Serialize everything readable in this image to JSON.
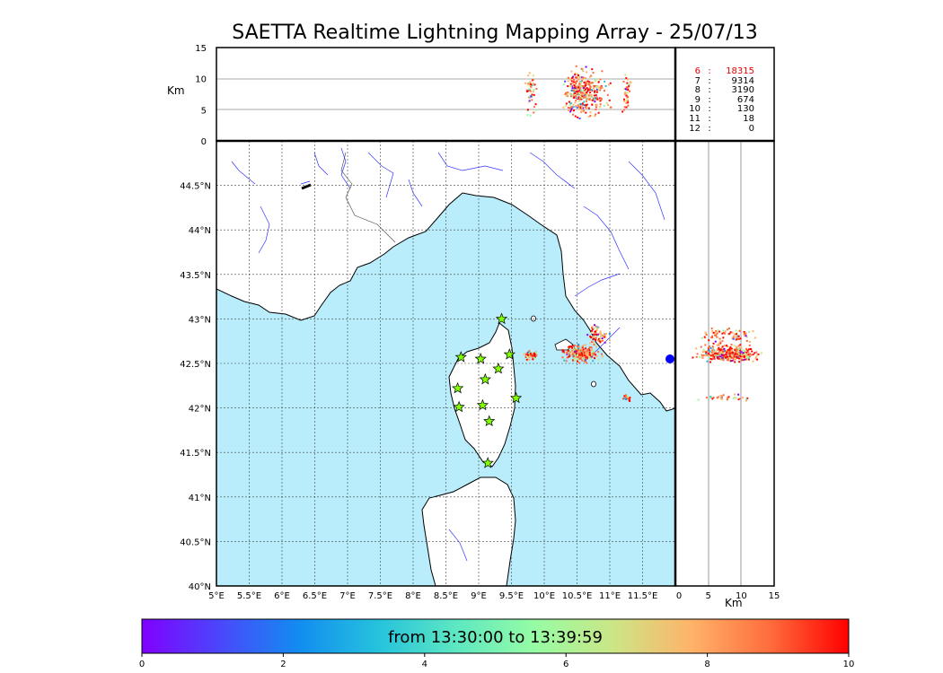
{
  "title": "SAETTA Realtime Lightning Mapping Array - 25/07/13",
  "altitude_panel": {
    "unit": "Km",
    "ticks": [
      "0",
      "5",
      "10",
      "15"
    ]
  },
  "profile_panel": {
    "unit": "Km",
    "ticks": [
      "0",
      "5",
      "10",
      "15"
    ]
  },
  "map": {
    "lon_ticks": [
      "5°E",
      "5.5°E",
      "6°E",
      "6.5°E",
      "7°E",
      "7.5°E",
      "8°E",
      "8.5°E",
      "9°E",
      "9.5°E",
      "10°E",
      "10.5°E",
      "11°E",
      "11.5°E"
    ],
    "lat_ticks": [
      "40°N",
      "40.5°N",
      "41°N",
      "41.5°N",
      "42°N",
      "42.5°N",
      "43°N",
      "43.5°N",
      "44°N",
      "44.5°N"
    ],
    "lon_range": [
      5,
      12
    ],
    "lat_range": [
      40,
      45
    ],
    "sea_color": "#b9edfb",
    "land_color": "#ffffff",
    "river_color": "#3333ff",
    "stations": [
      [
        9.35,
        43.0
      ],
      [
        8.73,
        42.57
      ],
      [
        9.03,
        42.55
      ],
      [
        9.47,
        42.6
      ],
      [
        9.3,
        42.44
      ],
      [
        9.1,
        42.32
      ],
      [
        8.68,
        42.22
      ],
      [
        9.57,
        42.11
      ],
      [
        9.06,
        42.03
      ],
      [
        8.7,
        42.01
      ],
      [
        9.16,
        41.85
      ],
      [
        9.14,
        41.38
      ]
    ],
    "lightning_clusters": [
      {
        "lon": 10.55,
        "lat": 42.62,
        "spread_lon": 0.35,
        "spread_lat": 0.12
      },
      {
        "lon": 9.78,
        "lat": 42.6,
        "spread_lon": 0.12,
        "spread_lat": 0.07
      },
      {
        "lon": 10.8,
        "lat": 42.82,
        "spread_lon": 0.25,
        "spread_lat": 0.15
      },
      {
        "lon": 11.25,
        "lat": 42.12,
        "spread_lon": 0.08,
        "spread_lat": 0.05
      }
    ]
  },
  "counts": [
    {
      "level": "6",
      "value": "18315",
      "highlight": true
    },
    {
      "level": "7",
      "value": "9314",
      "highlight": false
    },
    {
      "level": "8",
      "value": "3190",
      "highlight": false
    },
    {
      "level": "9",
      "value": "674",
      "highlight": false
    },
    {
      "level": "10",
      "value": "130",
      "highlight": false
    },
    {
      "level": "11",
      "value": "18",
      "highlight": false
    },
    {
      "level": "12",
      "value": "0",
      "highlight": false
    }
  ],
  "colorbar": {
    "caption": "from 13:30:00 to 13:39:59",
    "ticks": [
      "0",
      "2",
      "4",
      "6",
      "8",
      "10"
    ],
    "range": [
      0,
      10
    ],
    "colors": [
      "#8000ff",
      "#4a48fb",
      "#128cf0",
      "#25c2dd",
      "#5de7c2",
      "#96fca4",
      "#cbe686",
      "#ffb369",
      "#ff6c3c",
      "#ff0000"
    ]
  }
}
